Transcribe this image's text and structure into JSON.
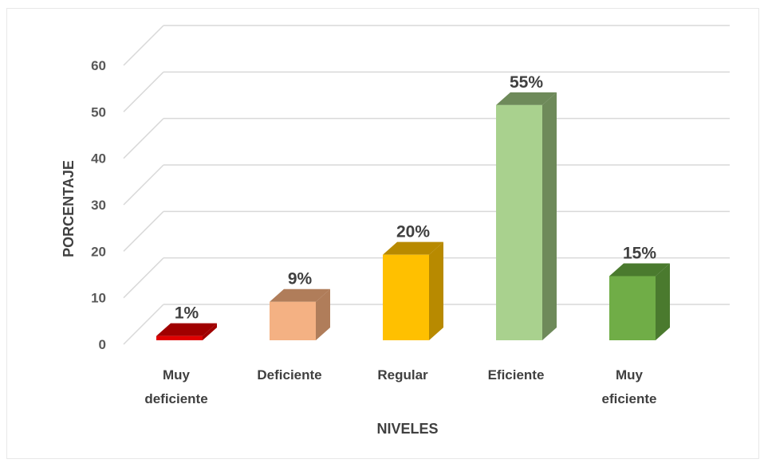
{
  "chart_data": {
    "type": "bar",
    "categories": [
      [
        "Muy",
        "deficiente"
      ],
      [
        "Deficiente"
      ],
      [
        "Regular"
      ],
      [
        "Eficiente"
      ],
      [
        "Muy",
        "eficiente"
      ]
    ],
    "values": [
      1,
      9,
      20,
      55,
      15
    ],
    "data_labels": [
      "1%",
      "9%",
      "20%",
      "55%",
      "15%"
    ],
    "colors": [
      "#e00000",
      "#f4b183",
      "#ffc000",
      "#a9d18e",
      "#70ad47"
    ],
    "side_colors": [
      "#a00000",
      "#b07d5a",
      "#b88a00",
      "#6e8a5a",
      "#4a7a2e"
    ],
    "ylim": [
      0,
      60
    ],
    "yticks": [
      0,
      10,
      20,
      30,
      40,
      50,
      60
    ],
    "xlabel": "NIVELES",
    "ylabel": "PORCENTAJE",
    "grid": true,
    "legend": "none",
    "style": "3d-column"
  }
}
